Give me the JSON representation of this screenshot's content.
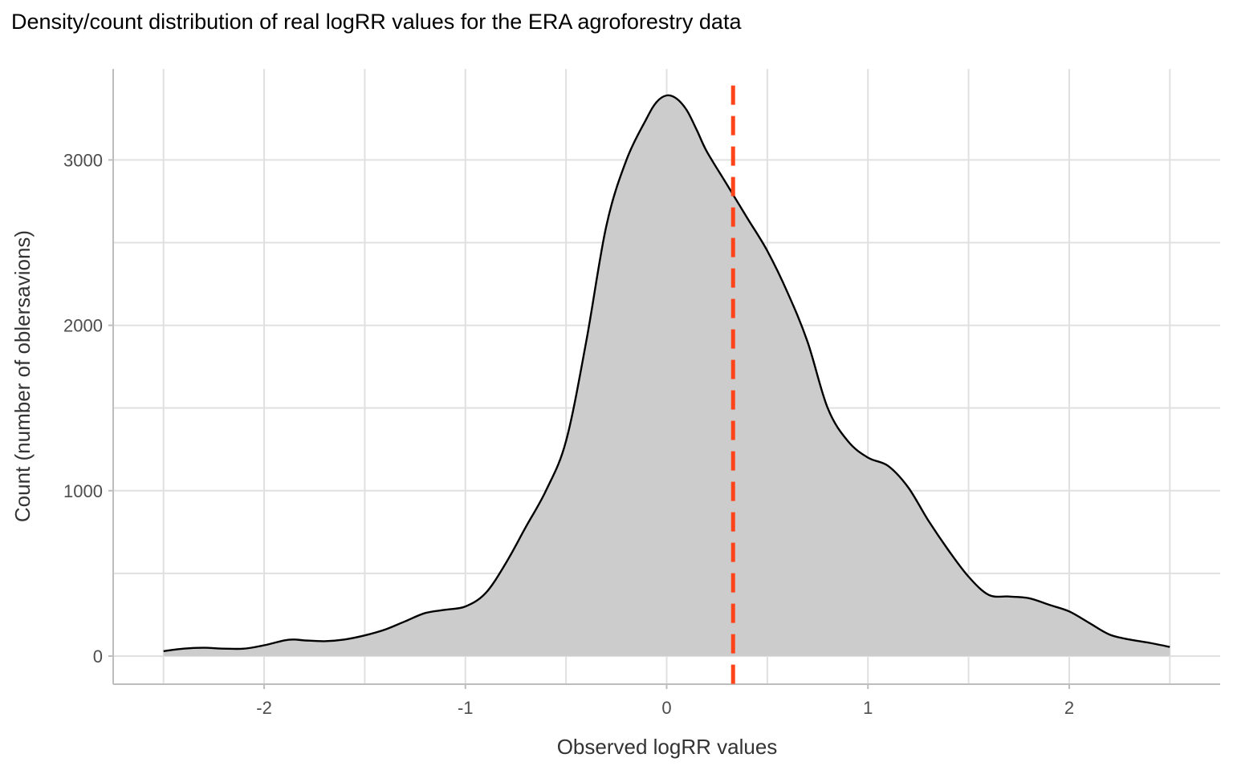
{
  "chart_data": {
    "type": "area",
    "title": "Density/count distribution of real logRR values for the ERA agroforestry data",
    "xlabel": "Observed logRR values",
    "ylabel": "Count (number of oblersavions)",
    "xlim": [
      -2.75,
      2.75
    ],
    "ylim": [
      -170,
      3550
    ],
    "x_ticks": [
      -2,
      -1,
      0,
      1,
      2
    ],
    "x_tick_labels": [
      "-2",
      "-1",
      "0",
      "1",
      "2"
    ],
    "y_ticks": [
      0,
      1000,
      2000,
      3000
    ],
    "y_tick_labels": [
      "0",
      "1000",
      "2000",
      "3000"
    ],
    "grid": true,
    "series": [
      {
        "x": [
          -2.5,
          -2.4,
          -2.3,
          -2.2,
          -2.1,
          -2.0,
          -1.9,
          -1.85,
          -1.8,
          -1.7,
          -1.6,
          -1.5,
          -1.4,
          -1.3,
          -1.2,
          -1.1,
          -1.0,
          -0.9,
          -0.8,
          -0.7,
          -0.6,
          -0.5,
          -0.4,
          -0.3,
          -0.2,
          -0.1,
          -0.05,
          0.0,
          0.05,
          0.1,
          0.15,
          0.2,
          0.3,
          0.4,
          0.5,
          0.6,
          0.7,
          0.8,
          0.9,
          1.0,
          1.1,
          1.2,
          1.3,
          1.4,
          1.5,
          1.6,
          1.7,
          1.8,
          1.9,
          2.0,
          2.1,
          2.2,
          2.3,
          2.4,
          2.5
        ],
        "y": [
          30,
          45,
          50,
          45,
          45,
          65,
          95,
          100,
          95,
          90,
          100,
          125,
          160,
          210,
          260,
          280,
          300,
          380,
          560,
          780,
          1000,
          1300,
          1900,
          2600,
          3000,
          3250,
          3350,
          3390,
          3370,
          3300,
          3180,
          3050,
          2850,
          2650,
          2450,
          2200,
          1900,
          1500,
          1300,
          1200,
          1150,
          1020,
          820,
          640,
          480,
          370,
          360,
          350,
          310,
          270,
          200,
          130,
          100,
          80,
          55
        ]
      }
    ],
    "reference_line": {
      "x": 0.33,
      "style": "dashed",
      "color": "#ff4419"
    },
    "colors": {
      "fill": "#cccccc",
      "outline": "#000000",
      "grid": "#e0e0e0",
      "axis": "#bdbdbd"
    }
  }
}
